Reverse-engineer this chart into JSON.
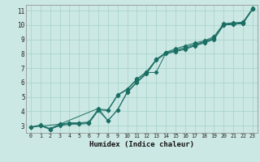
{
  "xlabel": "Humidex (Indice chaleur)",
  "bg_color": "#cce8e4",
  "line_color": "#1a6e64",
  "grid_color": "#aad4ce",
  "xlim": [
    -0.5,
    23.5
  ],
  "ylim": [
    2.5,
    11.4
  ],
  "xticks": [
    0,
    1,
    2,
    3,
    4,
    5,
    6,
    7,
    8,
    9,
    10,
    11,
    12,
    13,
    14,
    15,
    16,
    17,
    18,
    19,
    20,
    21,
    22,
    23
  ],
  "yticks": [
    3,
    4,
    5,
    6,
    7,
    8,
    9,
    10,
    11
  ],
  "line1_x": [
    0,
    1,
    2,
    3,
    4,
    5,
    6,
    7,
    8,
    9,
    10,
    11,
    12,
    13,
    14,
    15,
    16,
    17,
    18,
    19,
    20,
    21,
    22,
    23
  ],
  "line1_y": [
    2.9,
    3.0,
    2.75,
    3.0,
    3.1,
    3.1,
    3.15,
    4.05,
    3.35,
    4.1,
    5.3,
    6.0,
    6.6,
    7.55,
    8.0,
    8.15,
    8.3,
    8.55,
    8.75,
    9.0,
    10.0,
    10.05,
    10.1,
    11.1
  ],
  "line2_x": [
    0,
    1,
    2,
    3,
    4,
    5,
    6,
    7,
    8,
    9,
    10,
    11,
    12,
    13,
    14,
    15,
    16,
    17,
    18,
    19,
    20,
    21,
    22,
    23
  ],
  "line2_y": [
    2.9,
    3.0,
    2.75,
    3.05,
    3.15,
    3.15,
    3.2,
    4.1,
    4.05,
    5.1,
    5.5,
    6.2,
    6.7,
    6.7,
    8.05,
    8.25,
    8.45,
    8.65,
    8.85,
    9.1,
    10.05,
    10.1,
    10.15,
    11.1
  ],
  "line3_x": [
    0,
    1,
    2,
    3,
    4,
    5,
    6,
    7,
    8,
    9,
    10,
    11,
    12,
    13,
    14,
    15,
    16,
    17,
    18,
    19,
    20,
    21,
    22,
    23
  ],
  "line3_y": [
    2.9,
    3.05,
    2.8,
    3.1,
    3.2,
    3.2,
    3.25,
    4.15,
    4.1,
    5.15,
    5.55,
    6.25,
    6.75,
    7.6,
    8.1,
    8.35,
    8.55,
    8.75,
    8.9,
    9.2,
    10.1,
    10.15,
    10.2,
    11.15
  ],
  "line4_x": [
    0,
    3,
    7,
    8,
    9,
    10,
    11,
    12,
    13,
    14,
    15,
    16,
    17,
    18,
    19,
    20,
    21,
    22,
    23
  ],
  "line4_y": [
    2.9,
    3.1,
    4.2,
    3.35,
    4.1,
    5.35,
    6.05,
    6.65,
    7.6,
    8.05,
    8.2,
    8.35,
    8.6,
    8.8,
    9.05,
    10.0,
    10.05,
    10.1,
    11.1
  ]
}
